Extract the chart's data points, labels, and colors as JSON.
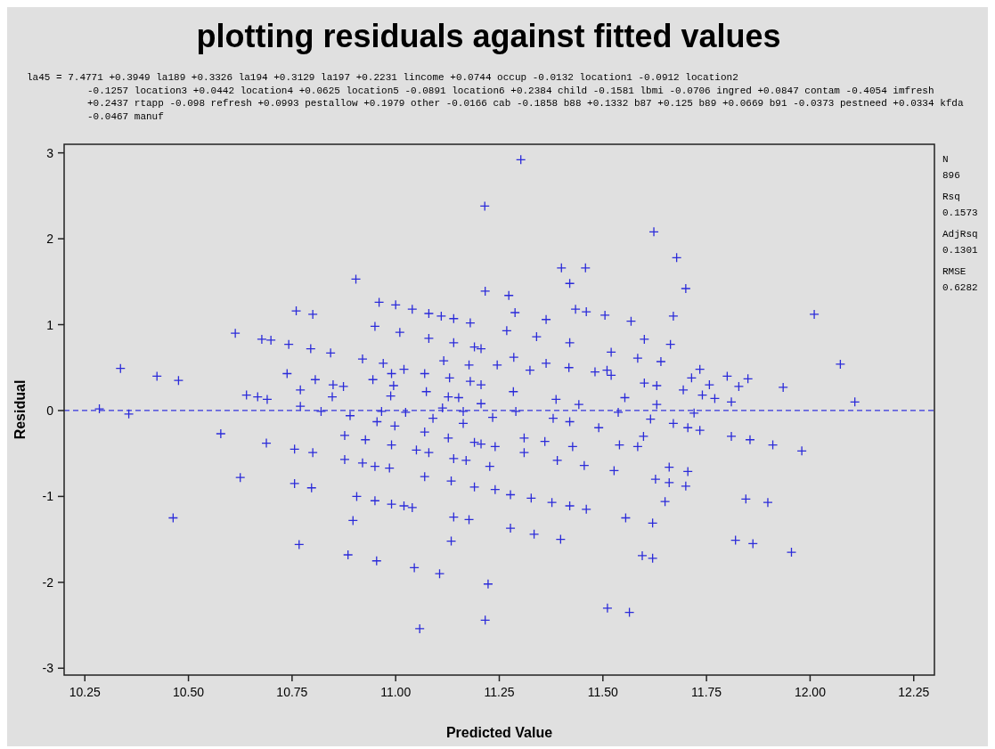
{
  "chart_data": {
    "type": "scatter",
    "title": "plotting residuals against fitted values",
    "xlabel": "Predicted Value",
    "ylabel": "Residual",
    "annotations": [
      "la45 = 7.4771 +0.3949 la189 +0.3326 la194 +0.3129 la197 +0.2231 lincome +0.0744 occup -0.0132 location1 -0.0912 location2 -0.1257 location3 +0.0442 location4 +0.0625 location5 -0.0891 location6 +0.2384 child -0.1581 lbmi -0.0706 ingred +0.0847 contam -0.4054 imfresh +0.2437 rtapp -0.098 refresh +0.0993 pestallow +0.1979 other -0.0166 cab -0.1858 b88 +0.1332 b87 +0.125 b89 +0.0669 b91 -0.0373 pestneed +0.0334 kfda -0.0467 manuf",
      "N",
      "896",
      "Rsq",
      "0.1573",
      "AdjRsq",
      "0.1301",
      "RMSE",
      "0.6282"
    ],
    "xlim": [
      10.2,
      12.3
    ],
    "ylim": [
      -3.08,
      3.1
    ],
    "xticks": [
      10.25,
      {
        "value": 10.5,
        "label": "10.50"
      },
      10.75,
      {
        "value": 11,
        "label": "11.00"
      },
      11.25,
      {
        "value": 11.5,
        "label": "11.50"
      },
      11.75,
      {
        "value": 12,
        "label": "12.00"
      },
      12.25
    ],
    "yticks": [
      -3,
      -2,
      -1,
      0,
      1,
      2,
      3
    ],
    "marker": "cross",
    "ref_lines": [
      {
        "axis": "y",
        "value": 0,
        "color": "#3333dd",
        "line_style": "dashed"
      }
    ],
    "series": [
      {
        "color": "#2b2bd9",
        "x": [
          10.285,
          10.356,
          10.336,
          10.424,
          10.476,
          10.463,
          10.578,
          10.613,
          10.625,
          10.64,
          10.667,
          10.677,
          10.69,
          10.699,
          10.688,
          10.742,
          10.738,
          10.756,
          10.756,
          10.76,
          10.767,
          10.77,
          10.77,
          10.795,
          10.8,
          10.8,
          10.797,
          10.806,
          10.82,
          10.843,
          10.849,
          10.847,
          10.874,
          10.877,
          10.877,
          10.885,
          10.89,
          10.897,
          10.904,
          10.906,
          10.92,
          10.927,
          10.92,
          10.945,
          10.95,
          10.95,
          10.95,
          10.954,
          10.955,
          10.96,
          10.966,
          10.97,
          10.985,
          10.99,
          10.99,
          10.99,
          10.995,
          10.988,
          10.998,
          11.0,
          11.01,
          11.02,
          11.02,
          11.024,
          11.04,
          11.04,
          11.045,
          11.05,
          11.058,
          11.07,
          11.07,
          11.07,
          11.074,
          11.08,
          11.08,
          11.08,
          11.09,
          11.106,
          11.11,
          11.113,
          11.116,
          11.127,
          11.127,
          11.13,
          11.134,
          11.134,
          11.14,
          11.14,
          11.14,
          11.14,
          11.152,
          11.163,
          11.163,
          11.17,
          11.177,
          11.177,
          11.18,
          11.18,
          11.19,
          11.19,
          11.19,
          11.206,
          11.206,
          11.206,
          11.206,
          11.215,
          11.216,
          11.216,
          11.223,
          11.227,
          11.234,
          11.24,
          11.24,
          11.245,
          11.268,
          11.273,
          11.277,
          11.277,
          11.284,
          11.285,
          11.288,
          11.29,
          11.302,
          11.31,
          11.31,
          11.324,
          11.327,
          11.334,
          11.34,
          11.36,
          11.363,
          11.363,
          11.377,
          11.38,
          11.387,
          11.39,
          11.398,
          11.4,
          11.418,
          11.42,
          11.42,
          11.42,
          11.42,
          11.427,
          11.434,
          11.442,
          11.455,
          11.458,
          11.46,
          11.46,
          11.481,
          11.49,
          11.505,
          11.51,
          11.511,
          11.52,
          11.52,
          11.527,
          11.537,
          11.54,
          11.553,
          11.555,
          11.564,
          11.568,
          11.584,
          11.584,
          11.595,
          11.598,
          11.6,
          11.6,
          11.615,
          11.62,
          11.62,
          11.623,
          11.627,
          11.63,
          11.63,
          11.64,
          11.65,
          11.66,
          11.66,
          11.663,
          11.67,
          11.67,
          11.678,
          11.694,
          11.7,
          11.7,
          11.705,
          11.705,
          11.714,
          11.72,
          11.734,
          11.734,
          11.74,
          11.757,
          11.77,
          11.8,
          11.81,
          11.81,
          11.82,
          11.828,
          11.845,
          11.85,
          11.855,
          11.862,
          11.898,
          11.91,
          11.935,
          11.955,
          11.98,
          12.01,
          12.073,
          12.108
        ],
        "values": [
          0.02,
          -0.04,
          0.49,
          0.4,
          0.35,
          -1.25,
          -0.27,
          0.9,
          -0.78,
          0.18,
          0.16,
          0.83,
          0.13,
          0.82,
          -0.38,
          0.77,
          0.43,
          -0.45,
          -0.85,
          1.16,
          -1.56,
          0.24,
          0.05,
          0.72,
          1.12,
          -0.49,
          -0.9,
          0.36,
          -0.01,
          0.67,
          0.3,
          0.16,
          0.28,
          -0.29,
          -0.57,
          -1.68,
          -0.06,
          -1.28,
          1.53,
          -1.0,
          0.6,
          -0.34,
          -0.61,
          0.36,
          0.98,
          -0.65,
          -1.05,
          -1.75,
          -0.13,
          1.26,
          -0.01,
          0.55,
          -0.67,
          0.43,
          -0.4,
          -1.09,
          0.29,
          0.17,
          -0.18,
          1.23,
          0.91,
          0.48,
          -1.11,
          -0.02,
          1.18,
          -1.13,
          -1.83,
          -0.46,
          -2.54,
          0.43,
          -0.25,
          -0.77,
          0.22,
          1.13,
          0.84,
          -0.49,
          -0.09,
          -1.9,
          1.1,
          0.03,
          0.58,
          0.16,
          -0.32,
          0.38,
          -0.82,
          -1.52,
          1.07,
          0.79,
          -0.56,
          -1.24,
          0.15,
          -0.01,
          -0.15,
          -0.58,
          0.53,
          -1.27,
          1.02,
          0.34,
          0.74,
          -0.37,
          -0.89,
          0.72,
          0.3,
          0.08,
          -0.39,
          2.38,
          1.39,
          -2.44,
          -2.02,
          -0.65,
          -0.08,
          -0.42,
          -0.92,
          0.53,
          0.93,
          1.34,
          -0.98,
          -1.37,
          0.22,
          0.62,
          1.14,
          -0.01,
          2.92,
          -0.32,
          -0.49,
          0.47,
          -1.02,
          -1.44,
          0.86,
          -0.36,
          0.55,
          1.06,
          -1.07,
          -0.09,
          0.13,
          -0.58,
          -1.5,
          1.66,
          0.5,
          0.79,
          1.48,
          -0.13,
          -1.11,
          -0.42,
          1.18,
          0.07,
          -0.64,
          1.66,
          1.15,
          -1.15,
          0.45,
          -0.2,
          1.11,
          0.47,
          -2.3,
          0.68,
          0.41,
          -0.7,
          -0.02,
          -0.4,
          0.15,
          -1.25,
          -2.35,
          1.04,
          0.61,
          -0.42,
          -1.69,
          -0.3,
          0.83,
          0.32,
          -0.1,
          -1.31,
          -1.72,
          2.08,
          -0.8,
          0.29,
          0.07,
          0.57,
          -1.06,
          -0.66,
          -0.84,
          0.77,
          1.1,
          -0.15,
          1.78,
          0.24,
          1.42,
          -0.88,
          -0.2,
          -0.71,
          0.38,
          -0.03,
          0.48,
          -0.23,
          0.18,
          0.3,
          0.14,
          0.4,
          0.1,
          -0.3,
          -1.51,
          0.28,
          -1.03,
          0.37,
          -0.34,
          -1.55,
          -1.07,
          -0.4,
          0.27,
          -1.65,
          -0.47,
          1.12,
          0.54,
          0.1
        ]
      }
    ]
  }
}
